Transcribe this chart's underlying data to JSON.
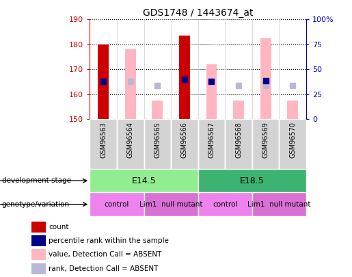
{
  "title": "GDS1748 / 1443674_at",
  "samples": [
    "GSM96563",
    "GSM96564",
    "GSM96565",
    "GSM96566",
    "GSM96567",
    "GSM96568",
    "GSM96569",
    "GSM96570"
  ],
  "ylim": [
    150,
    190
  ],
  "ylim_right": [
    0,
    100
  ],
  "yticks_left": [
    150,
    160,
    170,
    180,
    190
  ],
  "yticks_right": [
    0,
    25,
    50,
    75,
    100
  ],
  "ytick_labels_right": [
    "0",
    "25",
    "50",
    "75",
    "100%"
  ],
  "bar_bottom": 150,
  "red_bars": {
    "GSM96563": 180.0,
    "GSM96566": 183.5
  },
  "pink_bars": {
    "GSM96564": 178.0,
    "GSM96565": 157.5,
    "GSM96567": 172.0,
    "GSM96568": 157.5,
    "GSM96569": 182.5,
    "GSM96570": 157.5
  },
  "blue_squares": {
    "GSM96563": 165.0,
    "GSM96566": 166.0,
    "GSM96567": 165.0,
    "GSM96569": 165.5
  },
  "lavender_squares": {
    "GSM96564": 165.0,
    "GSM96565": 163.5,
    "GSM96568": 163.5,
    "GSM96569": 163.5,
    "GSM96570": 163.5
  },
  "development_stages": [
    {
      "label": "E14.5",
      "start": 0,
      "end": 4,
      "color": "#90ee90"
    },
    {
      "label": "E18.5",
      "start": 4,
      "end": 8,
      "color": "#3cb371"
    }
  ],
  "genotype_groups": [
    {
      "label": "control",
      "start": 0,
      "end": 2,
      "color": "#ee82ee"
    },
    {
      "label": "Lim1  null mutant",
      "start": 2,
      "end": 4,
      "color": "#da70d6"
    },
    {
      "label": "control",
      "start": 4,
      "end": 6,
      "color": "#ee82ee"
    },
    {
      "label": "Lim1  null mutant",
      "start": 6,
      "end": 8,
      "color": "#da70d6"
    }
  ],
  "legend_items": [
    {
      "label": "count",
      "color": "#cc0000"
    },
    {
      "label": "percentile rank within the sample",
      "color": "#00008b"
    },
    {
      "label": "value, Detection Call = ABSENT",
      "color": "#ffb6c1"
    },
    {
      "label": "rank, Detection Call = ABSENT",
      "color": "#b8b8d8"
    }
  ],
  "red_color": "#cc0000",
  "pink_color": "#ffb6c1",
  "blue_color": "#00008b",
  "lavender_color": "#b8b8d8",
  "bar_width": 0.4,
  "square_size": 30,
  "bg_color": "#ffffff",
  "tick_color_left": "#cc0000",
  "tick_color_right": "#0000cc",
  "cell_bg": "#d3d3d3",
  "dev_stage_label": "development stage",
  "genotype_label": "genotype/variation"
}
